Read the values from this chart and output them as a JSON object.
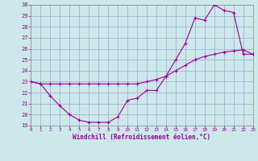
{
  "xlabel": "Windchill (Refroidissement éolien,°C)",
  "xlim": [
    0,
    23
  ],
  "ylim": [
    19,
    30
  ],
  "xticks": [
    0,
    1,
    2,
    3,
    4,
    5,
    6,
    7,
    8,
    9,
    10,
    11,
    12,
    13,
    14,
    15,
    16,
    17,
    18,
    19,
    20,
    21,
    22,
    23
  ],
  "yticks": [
    19,
    20,
    21,
    22,
    23,
    24,
    25,
    26,
    27,
    28,
    29,
    30
  ],
  "line_color": "#990099",
  "bg_color": "#cce8e8",
  "grid_color": "#99aacc",
  "curve1_x": [
    0,
    1,
    2,
    3,
    4,
    5,
    6,
    7,
    8,
    9,
    10,
    11,
    12,
    13,
    14,
    15,
    16,
    17,
    18,
    19,
    20,
    21,
    22,
    23
  ],
  "curve1_y": [
    23.0,
    22.8,
    21.7,
    20.8,
    20.0,
    19.5,
    19.3,
    19.3,
    19.3,
    19.8,
    21.3,
    21.5,
    22.2,
    22.2,
    23.5,
    25.0,
    26.5,
    28.8,
    28.6,
    30.0,
    29.5,
    29.3,
    25.5,
    25.5
  ],
  "curve2_x": [
    0,
    1,
    2,
    3,
    4,
    5,
    6,
    7,
    8,
    9,
    10,
    11,
    12,
    13,
    14,
    15,
    16,
    17,
    18,
    19,
    20,
    21,
    22,
    23
  ],
  "curve2_y": [
    23.0,
    22.8,
    22.8,
    22.8,
    22.8,
    22.8,
    22.8,
    22.8,
    22.8,
    22.8,
    22.8,
    22.8,
    23.0,
    23.2,
    23.5,
    24.0,
    24.5,
    25.0,
    25.3,
    25.5,
    25.7,
    25.8,
    25.9,
    25.5
  ]
}
